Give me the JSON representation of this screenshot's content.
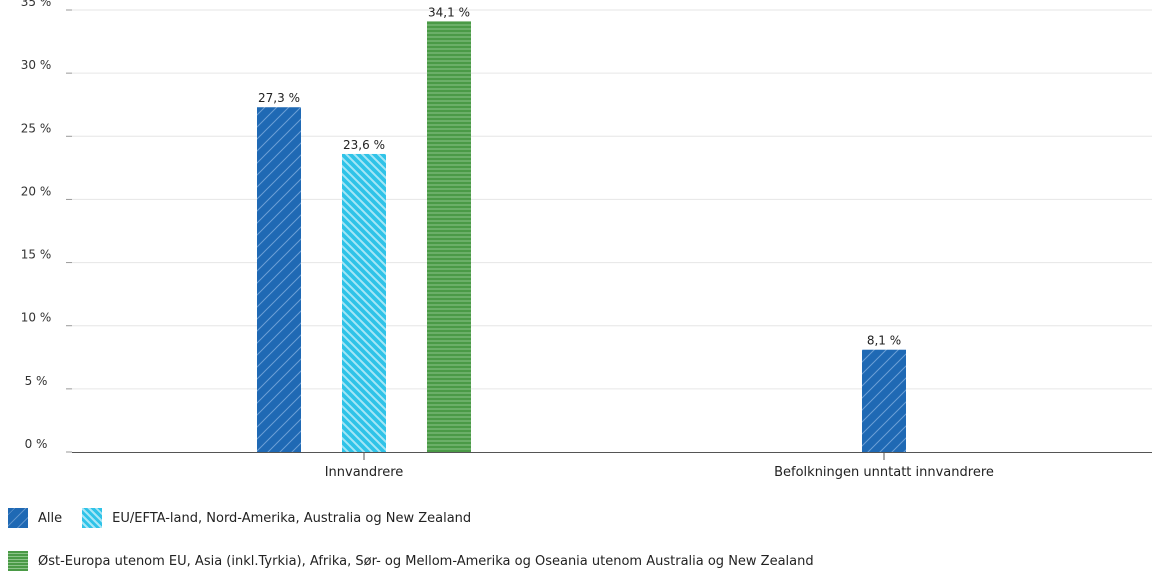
{
  "colors": {
    "alle": "#1f69b4",
    "eu": "#2fc3e8",
    "ost": "#4a9a46",
    "grid": "#e6e6e6",
    "axis": "#555555"
  },
  "chart_data": {
    "type": "bar",
    "categories": [
      "Innvandrere",
      "Befolkningen unntatt innvandrere"
    ],
    "series": [
      {
        "name": "Alle",
        "values": [
          27.3,
          8.1
        ],
        "labels": [
          "27,3 %",
          "8,1 %"
        ],
        "pattern": "diagonal"
      },
      {
        "name": "EU/EFTA-land, Nord-Amerika, Australia og New Zealand",
        "values": [
          23.6,
          null
        ],
        "labels": [
          "23,6 %",
          ""
        ],
        "pattern": "back-diagonal"
      },
      {
        "name": "Øst-Europa utenom EU, Asia (inkl.Tyrkia), Afrika, Sør- og Mellom-Amerika og Oseania utenom Australia og New Zealand",
        "values": [
          34.1,
          null
        ],
        "labels": [
          "34,1 %",
          ""
        ],
        "pattern": "horizontal"
      }
    ],
    "ylim": [
      0,
      35
    ],
    "yticks": [
      0,
      5,
      10,
      15,
      20,
      25,
      30,
      35
    ],
    "ytick_labels": [
      "0 %",
      "5 %",
      "10 %",
      "15 %",
      "20 %",
      "25 %",
      "30 %",
      "35 %"
    ],
    "grid": true,
    "legend_position": "bottom-left"
  }
}
